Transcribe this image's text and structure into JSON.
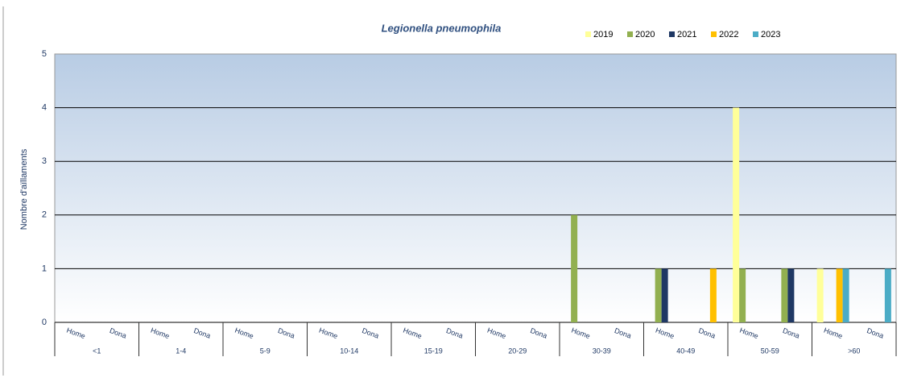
{
  "chart_data": {
    "type": "bar",
    "title": "Legionella pneumophila",
    "y_label": "Nombre d'aïllaments",
    "groups": [
      "<1",
      "1-4",
      "5-9",
      "10-14",
      "15-19",
      "20-29",
      "30-39",
      "40-49",
      "50-59",
      ">60"
    ],
    "categories": [
      "Home",
      "Dona",
      "Home",
      "Dona",
      "Home",
      "Dona",
      "Home",
      "Dona",
      "Home",
      "Dona",
      "Home",
      "Dona",
      "Home",
      "Dona",
      "Home",
      "Dona",
      "Home",
      "Dona",
      "Home",
      "Dona"
    ],
    "series": [
      {
        "name": "2019",
        "color": "#ffff99",
        "values": [
          0,
          0,
          0,
          0,
          0,
          0,
          0,
          0,
          0,
          0,
          0,
          0,
          0,
          0,
          0,
          0,
          4,
          0,
          1,
          0
        ]
      },
      {
        "name": "2020",
        "color": "#92b050",
        "values": [
          0,
          0,
          0,
          0,
          0,
          0,
          0,
          0,
          0,
          0,
          0,
          0,
          2,
          0,
          1,
          0,
          1,
          1,
          0,
          0
        ]
      },
      {
        "name": "2021",
        "color": "#1f3864",
        "values": [
          0,
          0,
          0,
          0,
          0,
          0,
          0,
          0,
          0,
          0,
          0,
          0,
          0,
          0,
          1,
          0,
          0,
          1,
          0,
          0
        ]
      },
      {
        "name": "2022",
        "color": "#ffc000",
        "values": [
          0,
          0,
          0,
          0,
          0,
          0,
          0,
          0,
          0,
          0,
          0,
          0,
          0,
          0,
          0,
          1,
          0,
          0,
          1,
          0
        ]
      },
      {
        "name": "2023",
        "color": "#4bacc6",
        "values": [
          0,
          0,
          0,
          0,
          0,
          0,
          0,
          0,
          0,
          0,
          0,
          0,
          0,
          0,
          0,
          0,
          0,
          0,
          1,
          1
        ]
      }
    ],
    "ylim": [
      0,
      5
    ],
    "yticks": [
      0,
      1,
      2,
      3,
      4,
      5
    ],
    "grid": true,
    "legend": "top-right"
  }
}
